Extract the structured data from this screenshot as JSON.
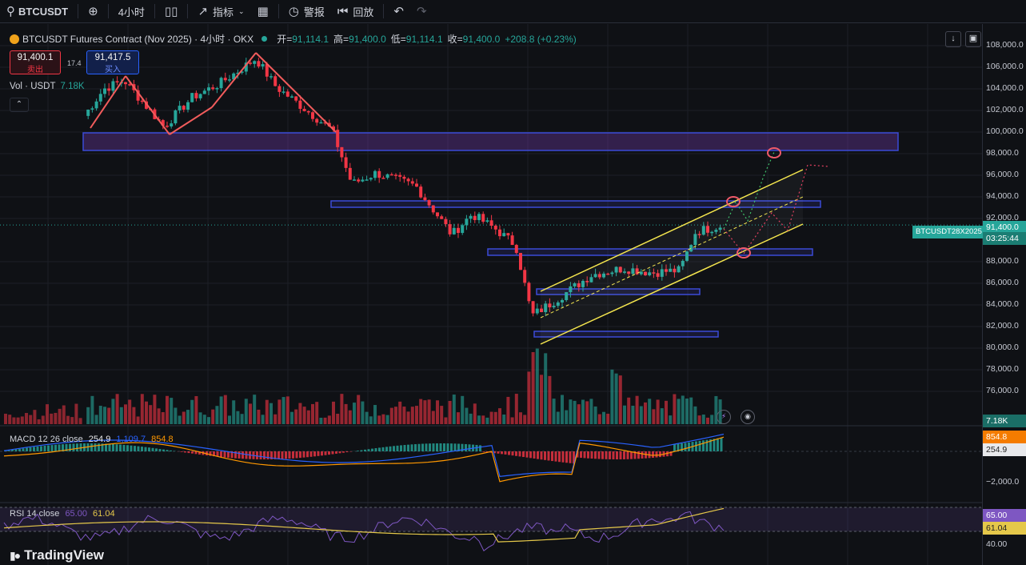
{
  "toolbar": {
    "symbol": "BTCUSDT",
    "add_icon": "plus-circle-icon",
    "interval": "4小时",
    "chart_type_icon": "candles-icon",
    "indicators_label": "指标",
    "layout_icon": "grid-icon",
    "alert_label": "警报",
    "replay_label": "回放",
    "undo_icon": "undo-icon",
    "redo_icon": "redo-icon"
  },
  "legend": {
    "title": "BTCUSDT Futures Contract (Nov 2025) · 4小时 · OKX",
    "open_label": "开=",
    "open": "91,114.1",
    "high_label": "高=",
    "high": "91,400.0",
    "low_label": "低=",
    "low": "91,114.1",
    "close_label": "收=",
    "close": "91,400.0",
    "change": "+208.8 (+0.23%)"
  },
  "trade": {
    "sell_price": "91,400.1",
    "sell_label": "卖出",
    "spread": "17.4",
    "buy_price": "91,417.5",
    "buy_label": "买入"
  },
  "volume": {
    "label": "Vol · USDT",
    "value": "7.18K",
    "axis_badge": "7.18K"
  },
  "macd": {
    "label": "MACD 12 26 close",
    "v1": "254.9",
    "v2": "1,109.7",
    "v3": "854.8",
    "badge_orange": "854.8",
    "badge_gray": "254.9",
    "tick": "−2,000.0"
  },
  "rsi": {
    "label": "RSI 14 close",
    "v1": "65.00",
    "v2": "61.04",
    "badge_purple": "65.00",
    "badge_yellow": "61.04",
    "tick": "40.00"
  },
  "price_axis": {
    "ticks": [
      "108,000.0",
      "106,000.0",
      "104,000.0",
      "102,000.0",
      "100,000.0",
      "98,000.0",
      "96,000.0",
      "94,000.0",
      "92,000.0",
      "88,000.0",
      "86,000.0",
      "84,000.0",
      "82,000.0",
      "80,000.0",
      "78,000.0",
      "76,000.0"
    ],
    "symbol_badge": "BTCUSDT28X2025",
    "current_price": "91,400.0",
    "countdown": "03:25:44"
  },
  "colors": {
    "up": "#26a69a",
    "down": "#f23645",
    "zone": "#3b4bd6",
    "channel": "#f5e64b",
    "arrow": "#f25c5c",
    "macd_line": "#2962ff",
    "signal_line": "#ff9800",
    "rsi_line": "#7e57c2",
    "rsi_ma": "#e5c84a"
  },
  "brand": "TradingView"
}
